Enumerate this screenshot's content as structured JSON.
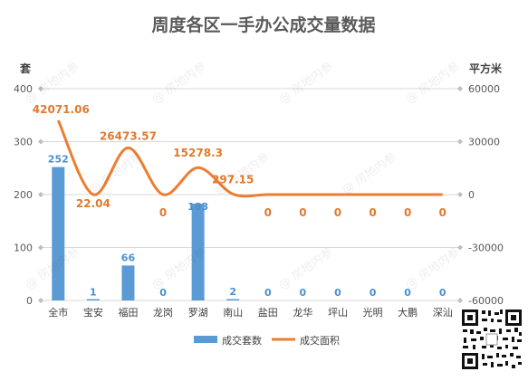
{
  "chart_data": {
    "type": "bar+line",
    "title": "周度各区一手办公成交量数据",
    "categories": [
      "全市",
      "宝安",
      "福田",
      "龙岗",
      "罗湖",
      "南山",
      "盐田",
      "龙华",
      "坪山",
      "光明",
      "大鹏",
      "深汕"
    ],
    "left_axis": {
      "label": "套",
      "ylim": [
        0,
        400
      ],
      "ticks": [
        0,
        100,
        200,
        300,
        400
      ]
    },
    "right_axis": {
      "label": "平方米",
      "ylim": [
        -60000,
        60000
      ],
      "ticks": [
        "-60000",
        "-30000",
        "0",
        "30000",
        "60000"
      ]
    },
    "grid": true,
    "legend_position": "bottom",
    "series": [
      {
        "name": "成交套数",
        "kind": "bar",
        "axis": "left",
        "color": "#5b9bd5",
        "values": [
          252,
          1,
          66,
          0,
          183,
          2,
          0,
          0,
          0,
          0,
          0,
          0
        ],
        "labels": [
          "252",
          "1",
          "66",
          "0",
          "183",
          "2",
          "0",
          "0",
          "0",
          "0",
          "0",
          "0"
        ]
      },
      {
        "name": "成交面积",
        "kind": "line",
        "axis": "right",
        "color": "#ed7d31",
        "values": [
          42071.06,
          22.04,
          26473.57,
          0,
          15278.3,
          297.15,
          0,
          0,
          0,
          0,
          0,
          0
        ],
        "labels": [
          "42071.06",
          "22.04",
          "26473.57",
          "0",
          "15278.3",
          "297.15",
          "0",
          "0",
          "0",
          "0",
          "0",
          "0"
        ]
      }
    ]
  },
  "watermark": "@ 房地内参",
  "qr_icon": "qr-code-icon"
}
